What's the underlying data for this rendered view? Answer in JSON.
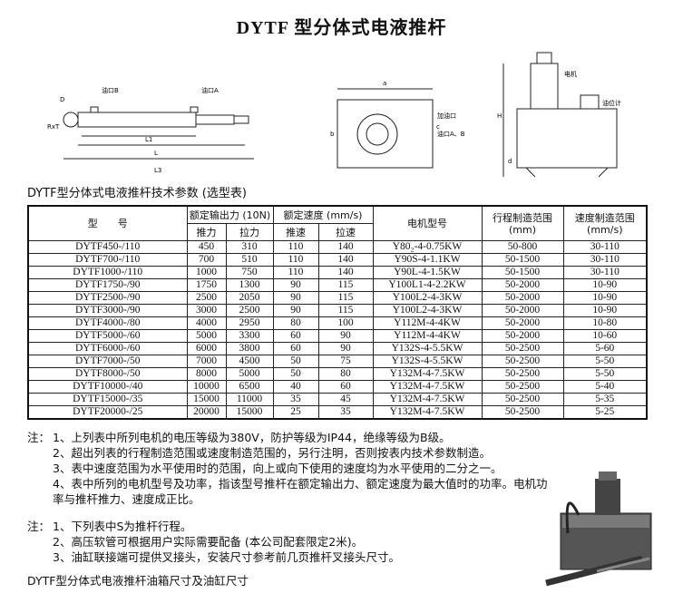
{
  "header": {
    "title": "DYTF 型分体式电液推杆"
  },
  "drawing_left": {
    "labels": [
      "D",
      "RxT",
      "油口B",
      "油口A",
      "L1",
      "L",
      "L3"
    ]
  },
  "drawing_right": {
    "labels": [
      "a",
      "b",
      "H",
      "c",
      "d",
      "电机",
      "油位计",
      "油口A、B",
      "加油口"
    ]
  },
  "table": {
    "caption": "DYTF型分体式电液推杆技术参数 (选型表)",
    "header": [
      "型　　号",
      "额定输出力 (10N)",
      "额定速度 (mm/s)",
      "电机型号",
      "行程制造范围 (mm)",
      "速度制造范围 (mm/s)"
    ],
    "subheader": [
      "推力",
      "拉力",
      "推速",
      "拉速"
    ],
    "rows": [
      [
        "DYTF450-/110",
        "450",
        "310",
        "110",
        "140",
        "Y80₂-4-0.75KW",
        "50-800",
        "30-110"
      ],
      [
        "DYTF700-/110",
        "700",
        "510",
        "110",
        "140",
        "Y90S-4-1.1KW",
        "50-1500",
        "30-110"
      ],
      [
        "DYTF1000-/110",
        "1000",
        "750",
        "110",
        "140",
        "Y90L-4-1.5KW",
        "50-1500",
        "30-110"
      ],
      [
        "DYTF1750-/90",
        "1750",
        "1300",
        "90",
        "115",
        "Y100L1-4-2.2KW",
        "50-2000",
        "10-90"
      ],
      [
        "DYTF2500-/90",
        "2500",
        "2050",
        "90",
        "115",
        "Y100L2-4-3KW",
        "50-2000",
        "10-90"
      ],
      [
        "DYTF3000-/90",
        "3000",
        "2500",
        "90",
        "115",
        "Y100L2-4-3KW",
        "50-2000",
        "10-90"
      ],
      [
        "DYTF4000-/80",
        "4000",
        "2950",
        "80",
        "100",
        "Y112M-4-4KW",
        "50-2000",
        "10-80"
      ],
      [
        "DYTF5000-/60",
        "5000",
        "3300",
        "60",
        "90",
        "Y112M-4-4KW",
        "50-2000",
        "10-60"
      ],
      [
        "DYTF6000-/60",
        "6000",
        "3800",
        "60",
        "90",
        "Y132S-4-5.5KW",
        "50-2500",
        "5-60"
      ],
      [
        "DYTF7000-/50",
        "7000",
        "4500",
        "50",
        "75",
        "Y132S-4-5.5KW",
        "50-2500",
        "5-50"
      ],
      [
        "DYTF8000-/50",
        "8000",
        "5000",
        "50",
        "80",
        "Y132M-4-7.5KW",
        "50-2500",
        "5-50"
      ],
      [
        "DYTF10000-/40",
        "10000",
        "6500",
        "40",
        "60",
        "Y132M-4-7.5KW",
        "50-2500",
        "5-40"
      ],
      [
        "DYTF15000-/35",
        "15000",
        "11000",
        "35",
        "45",
        "Y132M-4-7.5KW",
        "50-2500",
        "5-35"
      ],
      [
        "DYTF20000-/25",
        "20000",
        "15000",
        "25",
        "35",
        "Y132M-4-7.5KW",
        "50-2500",
        "5-25"
      ]
    ]
  },
  "notes1": {
    "label": "注：",
    "items": [
      "1、上列表中所列电机的电压等级为380V，防护等级为IP44，绝缘等级为B级。",
      "2、超出列表的行程制造范围或速度制造范围的，另行注明，否则按表内技术参数制造。",
      "3、表中速度范围为水平使用时的范围，向上或向下使用的速度均为水平使用的二分之一。",
      "4、表中所列的电机型号及功率，指该型号推杆在额定输出力、额定速度为最大值时的功率。电机功率与推杆推力、速度成正比。"
    ]
  },
  "notes2": {
    "label": "注：",
    "items": [
      "1、下列表中S为推杆行程。",
      "2、高压软管可根据用户实际需要配备 (本公司配套限定2米)。",
      "3、油缸联接端可提供叉接头，安装尺寸参考前几页推杆叉接头尺寸。"
    ]
  },
  "footer": {
    "title": "DYTF型分体式电液推杆油箱尺寸及油缸尺寸"
  }
}
